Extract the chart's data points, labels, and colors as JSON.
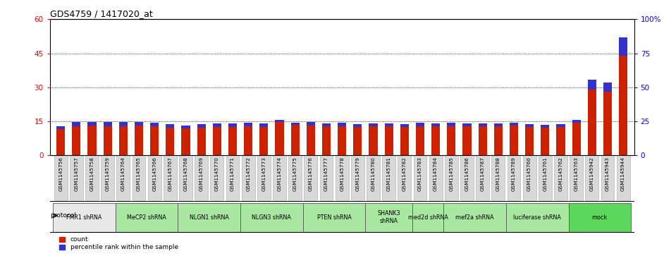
{
  "title": "GDS4759 / 1417020_at",
  "samples": [
    "GSM1145756",
    "GSM1145757",
    "GSM1145758",
    "GSM1145759",
    "GSM1145764",
    "GSM1145765",
    "GSM1145766",
    "GSM1145767",
    "GSM1145768",
    "GSM1145769",
    "GSM1145770",
    "GSM1145771",
    "GSM1145772",
    "GSM1145773",
    "GSM1145774",
    "GSM1145775",
    "GSM1145776",
    "GSM1145777",
    "GSM1145778",
    "GSM1145779",
    "GSM1145780",
    "GSM1145781",
    "GSM1145782",
    "GSM1145783",
    "GSM1145784",
    "GSM1145785",
    "GSM1145786",
    "GSM1145787",
    "GSM1145788",
    "GSM1145789",
    "GSM1145760",
    "GSM1145761",
    "GSM1145762",
    "GSM1145763",
    "GSM1145942",
    "GSM1145943",
    "GSM1145944"
  ],
  "red_values": [
    11.5,
    12.8,
    13.2,
    12.8,
    13.0,
    13.2,
    13.0,
    12.2,
    11.8,
    12.3,
    12.5,
    12.5,
    13.0,
    12.7,
    14.8,
    13.5,
    13.2,
    13.0,
    13.0,
    12.7,
    13.0,
    13.0,
    12.5,
    13.0,
    13.0,
    13.0,
    13.0,
    13.0,
    13.0,
    13.2,
    12.5,
    12.2,
    12.5,
    14.5,
    29.0,
    28.0,
    44.0
  ],
  "blue_values": [
    1.5,
    1.8,
    1.5,
    1.8,
    1.8,
    1.5,
    1.5,
    1.5,
    1.5,
    1.5,
    1.5,
    1.5,
    1.5,
    1.5,
    1.0,
    1.0,
    1.5,
    1.2,
    1.5,
    1.2,
    1.2,
    1.2,
    1.2,
    1.5,
    1.2,
    1.5,
    1.2,
    1.2,
    1.2,
    1.2,
    1.2,
    1.2,
    1.2,
    1.2,
    4.5,
    4.0,
    8.0
  ],
  "protocols": [
    {
      "label": "FMR1 shRNA",
      "start": 0,
      "end": 4,
      "color": "#e8e8e8"
    },
    {
      "label": "MeCP2 shRNA",
      "start": 4,
      "end": 8,
      "color": "#a8e8a0"
    },
    {
      "label": "NLGN1 shRNA",
      "start": 8,
      "end": 12,
      "color": "#a8e8a0"
    },
    {
      "label": "NLGN3 shRNA",
      "start": 12,
      "end": 16,
      "color": "#a8e8a0"
    },
    {
      "label": "PTEN shRNA",
      "start": 16,
      "end": 20,
      "color": "#a8e8a0"
    },
    {
      "label": "SHANK3\nshRNA",
      "start": 20,
      "end": 23,
      "color": "#a8e8a0"
    },
    {
      "label": "med2d shRNA",
      "start": 23,
      "end": 25,
      "color": "#a8e8a0"
    },
    {
      "label": "mef2a shRNA",
      "start": 25,
      "end": 29,
      "color": "#a8e8a0"
    },
    {
      "label": "luciferase shRNA",
      "start": 29,
      "end": 33,
      "color": "#a8e8a0"
    },
    {
      "label": "mock",
      "start": 33,
      "end": 37,
      "color": "#5cd65c"
    }
  ],
  "left_ylim": [
    0,
    60
  ],
  "right_ylim": [
    0,
    100
  ],
  "left_yticks": [
    0,
    15,
    30,
    45,
    60
  ],
  "right_yticks": [
    0,
    25,
    50,
    75,
    100
  ],
  "right_yticklabels": [
    "0",
    "25",
    "50",
    "75",
    "100%"
  ],
  "bar_width": 0.55,
  "red_color": "#cc2200",
  "blue_color": "#3333cc",
  "tick_bg_color": "#d8d8d8",
  "grid_color": "black",
  "bg_color": "white"
}
